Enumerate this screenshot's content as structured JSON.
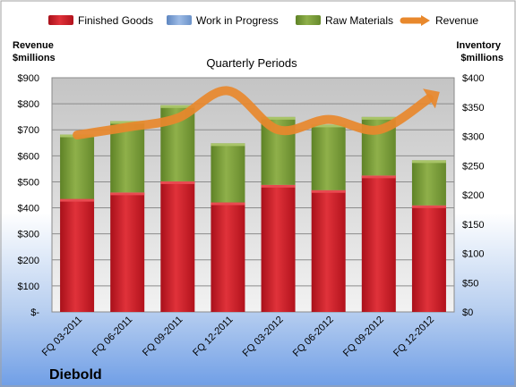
{
  "chart_data": {
    "type": "bar",
    "stacked": true,
    "title": "Quarterly Periods",
    "company": "Diebold",
    "categories": [
      "FQ 03-2011",
      "FQ 06-2011",
      "FQ 09-2011",
      "FQ 12-2011",
      "FQ 03-2012",
      "FQ 06-2012",
      "FQ 09-2012",
      "FQ 12-2012"
    ],
    "series": [
      {
        "name": "Finished Goods",
        "values": [
          193,
          204,
          223,
          187,
          217,
          208,
          233,
          182
        ],
        "color": "#c8141e"
      },
      {
        "name": "Work in Progress",
        "values": [
          0,
          0,
          0,
          0,
          0,
          0,
          0,
          0
        ],
        "color": "#7fa6d8"
      },
      {
        "name": "Raw Materials",
        "values": [
          110,
          122,
          130,
          101,
          116,
          112,
          100,
          77
        ],
        "color": "#7ea33a"
      }
    ],
    "line_series": {
      "name": "Revenue",
      "values": [
        680,
        710,
        745,
        850,
        700,
        740,
        700,
        820
      ],
      "color": "#e8882c"
    },
    "left_axis": {
      "title": "Revenue\n$millions",
      "min": 0,
      "max": 900,
      "step": 100,
      "tick_labels": [
        "$-",
        "$100",
        "$200",
        "$300",
        "$400",
        "$500",
        "$600",
        "$700",
        "$800",
        "$900"
      ]
    },
    "right_axis": {
      "title": "Inventory\n$millions",
      "min": 0,
      "max": 400,
      "step": 50,
      "tick_labels": [
        "$0",
        "$50",
        "$100",
        "$150",
        "$200",
        "$250",
        "$300",
        "$350",
        "$400"
      ]
    },
    "legend": {
      "position": "top",
      "entries": [
        "Finished Goods",
        "Work in Progress",
        "Raw Materials",
        "Revenue"
      ]
    },
    "grid": true
  }
}
